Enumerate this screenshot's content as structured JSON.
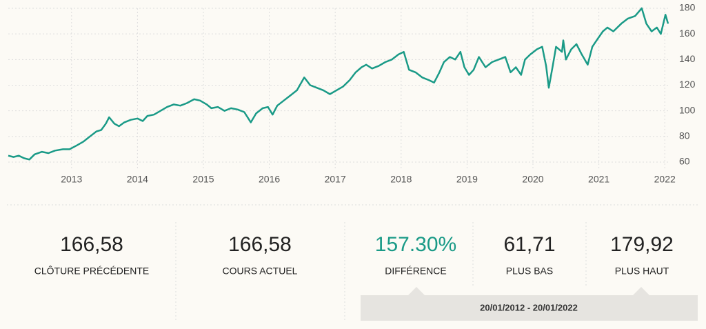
{
  "chart_data": {
    "type": "line",
    "x": [
      2012.04,
      2012.12,
      2012.2,
      2012.28,
      2012.36,
      2012.44,
      2012.55,
      2012.65,
      2012.75,
      2012.87,
      2012.97,
      2013.08,
      2013.18,
      2013.28,
      2013.38,
      2013.45,
      2013.52,
      2013.57,
      2013.65,
      2013.72,
      2013.8,
      2013.9,
      2014.0,
      2014.08,
      2014.15,
      2014.25,
      2014.35,
      2014.45,
      2014.55,
      2014.65,
      2014.75,
      2014.86,
      2014.95,
      2015.05,
      2015.12,
      2015.22,
      2015.32,
      2015.42,
      2015.52,
      2015.62,
      2015.72,
      2015.8,
      2015.9,
      2015.98,
      2016.05,
      2016.12,
      2016.22,
      2016.32,
      2016.42,
      2016.53,
      2016.62,
      2016.72,
      2016.82,
      2016.92,
      2017.02,
      2017.12,
      2017.22,
      2017.31,
      2017.4,
      2017.47,
      2017.56,
      2017.66,
      2017.76,
      2017.86,
      2017.96,
      2018.04,
      2018.12,
      2018.22,
      2018.32,
      2018.42,
      2018.5,
      2018.58,
      2018.65,
      2018.74,
      2018.82,
      2018.9,
      2018.96,
      2019.03,
      2019.1,
      2019.18,
      2019.28,
      2019.38,
      2019.48,
      2019.58,
      2019.66,
      2019.74,
      2019.82,
      2019.88,
      2019.96,
      2020.06,
      2020.14,
      2020.2,
      2020.24,
      2020.3,
      2020.35,
      2020.44,
      2020.46,
      2020.5,
      2020.58,
      2020.66,
      2020.74,
      2020.83,
      2020.9,
      2020.98,
      2021.06,
      2021.13,
      2021.22,
      2021.34,
      2021.44,
      2021.55,
      2021.65,
      2021.72,
      2021.8,
      2021.88,
      2021.94,
      2022.01,
      2022.05
    ],
    "series": [
      {
        "color": "#1a9a87",
        "values": [
          65,
          64,
          65,
          63,
          62,
          66,
          68,
          67,
          69,
          70,
          70,
          73,
          76,
          80,
          84,
          85,
          90,
          95,
          90,
          88,
          91,
          93,
          94,
          92,
          96,
          97,
          100,
          103,
          105,
          104,
          106,
          109,
          108,
          105,
          102,
          103,
          100,
          102,
          101,
          99,
          91,
          98,
          102,
          103,
          97,
          104,
          108,
          112,
          116,
          126,
          120,
          118,
          116,
          113,
          116,
          119,
          124,
          130,
          134,
          136,
          133,
          135,
          138,
          140,
          144,
          146,
          132,
          130,
          126,
          124,
          122,
          130,
          138,
          142,
          140,
          146,
          134,
          128,
          132,
          142,
          134,
          138,
          140,
          142,
          130,
          134,
          128,
          140,
          144,
          148,
          150,
          135,
          118,
          135,
          150,
          146,
          155,
          140,
          148,
          152,
          144,
          136,
          150,
          156,
          162,
          165,
          162,
          168,
          172,
          174,
          180,
          168,
          162,
          165,
          160,
          175,
          168
        ]
      }
    ],
    "xlim": [
      2012.04,
      2022.05
    ],
    "xticks": [
      2013,
      2014,
      2015,
      2016,
      2017,
      2018,
      2019,
      2020,
      2021,
      2022
    ],
    "ylim": [
      60,
      180
    ],
    "yticks": [
      60,
      80,
      100,
      120,
      140,
      160,
      180
    ],
    "grid": true
  },
  "stats": [
    {
      "value": "166,58",
      "label": "CLÔTURE PRÉCÉDENTE"
    },
    {
      "value": "166,58",
      "label": "COURS ACTUEL"
    },
    {
      "value": "157.30%",
      "label": "DIFFÉRENCE"
    },
    {
      "value": "61,71",
      "label": "PLUS BAS"
    },
    {
      "value": "179,92",
      "label": "PLUS HAUT"
    }
  ],
  "range": "20/01/2012 - 20/01/2022"
}
